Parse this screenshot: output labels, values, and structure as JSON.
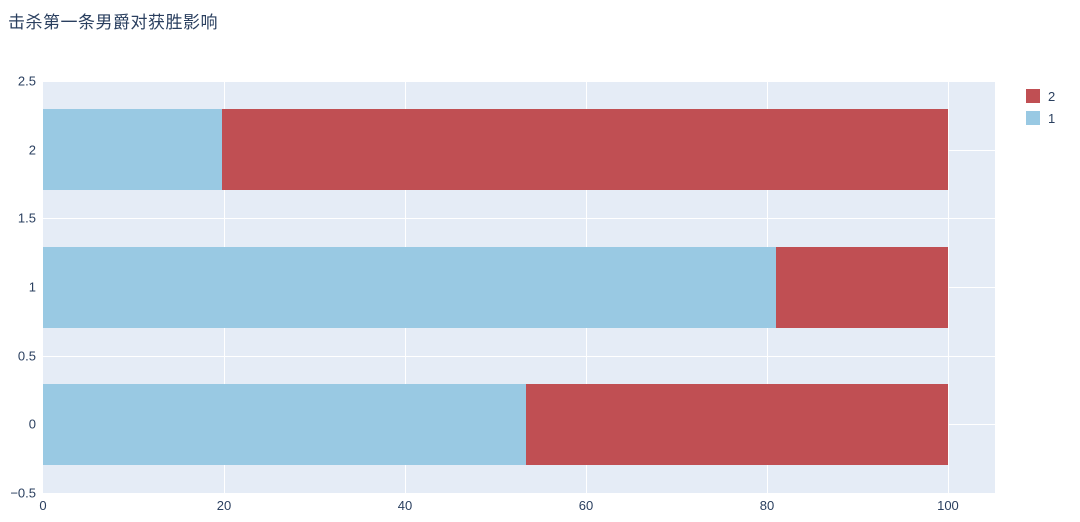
{
  "title": "击杀第一条男爵对获胜影响",
  "colors": {
    "page_bg": "#ffffff",
    "plot_bg": "#e5ecf6",
    "grid": "#ffffff",
    "text": "#2a3f5f",
    "series_1_blue": "#99c9e3",
    "series_2_red": "#c04f53"
  },
  "chart_data": {
    "type": "bar",
    "orientation": "horizontal",
    "barmode": "stack",
    "title": "击杀第一条男爵对获胜影响",
    "xlabel": "",
    "ylabel": "",
    "categories": [
      0,
      1,
      2
    ],
    "series": [
      {
        "name": "1",
        "color": "#99c9e3",
        "values": [
          53.4,
          81.0,
          19.8
        ]
      },
      {
        "name": "2",
        "color": "#c04f53",
        "values": [
          46.6,
          19.0,
          80.2
        ]
      }
    ],
    "xlim": [
      0,
      105.2
    ],
    "ylim": [
      -0.5,
      2.5
    ],
    "x_tick_values": [
      0,
      20,
      40,
      60,
      80,
      100
    ],
    "x_tick_labels": [
      "0",
      "20",
      "40",
      "60",
      "80",
      "100"
    ],
    "y_tick_values": [
      -0.5,
      0,
      0.5,
      1,
      1.5,
      2,
      2.5
    ],
    "y_tick_labels": [
      "−0.5",
      "0",
      "0.5",
      "1",
      "1.5",
      "2",
      "2.5"
    ],
    "grid": true,
    "legend": {
      "position": "top-right",
      "entries": [
        {
          "label": "2",
          "color": "#c04f53"
        },
        {
          "label": "1",
          "color": "#99c9e3"
        }
      ]
    }
  }
}
